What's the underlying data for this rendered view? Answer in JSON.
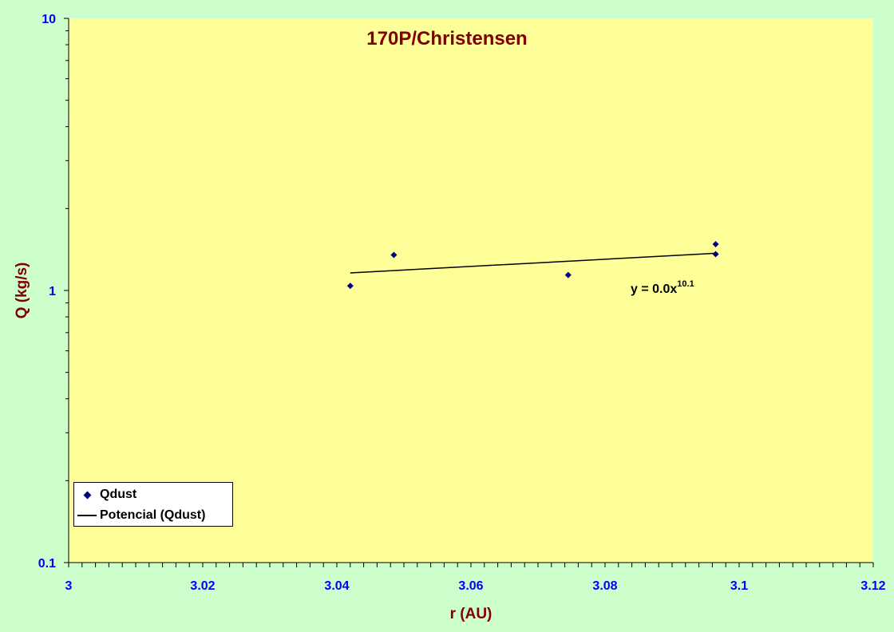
{
  "chart_data": {
    "type": "scatter",
    "title": "170P/Christensen",
    "xlabel": "r (AU)",
    "ylabel": "Q (kg/s)",
    "x_scale": "linear",
    "y_scale": "log",
    "xlim": [
      3,
      3.12
    ],
    "ylim": [
      0.1,
      10
    ],
    "x_ticks": [
      "3",
      "3.02",
      "3.04",
      "3.06",
      "3.08",
      "3.1",
      "3.12"
    ],
    "y_ticks": [
      "0.1",
      "1",
      "10"
    ],
    "grid": false,
    "legend_position": "bottom-left",
    "series": [
      {
        "name": "Qdust",
        "marker": "diamond",
        "color": "#000080",
        "points": [
          {
            "x": 3.042,
            "y": 1.04
          },
          {
            "x": 3.0485,
            "y": 1.35
          },
          {
            "x": 3.0745,
            "y": 1.14
          },
          {
            "x": 3.0965,
            "y": 1.48
          },
          {
            "x": 3.0965,
            "y": 1.36
          }
        ]
      }
    ],
    "trendline": {
      "name": "Potencial (Qdust)",
      "type": "power",
      "color": "#000000",
      "x_range": [
        3.042,
        3.0965
      ],
      "y_range": [
        1.16,
        1.37
      ],
      "equation_base": "y = 0.0x",
      "equation_exponent": "10.1"
    }
  },
  "colors": {
    "background": "#ccffcc",
    "plot_area": "#ffff99",
    "title": "#800000",
    "axis_title": "#800000",
    "tick_labels": "#0000ff",
    "marker": "#000080"
  },
  "legend": {
    "items": [
      {
        "label": "Qdust",
        "symbol": "diamond"
      },
      {
        "label": "Potencial (Qdust)",
        "symbol": "line"
      }
    ]
  }
}
